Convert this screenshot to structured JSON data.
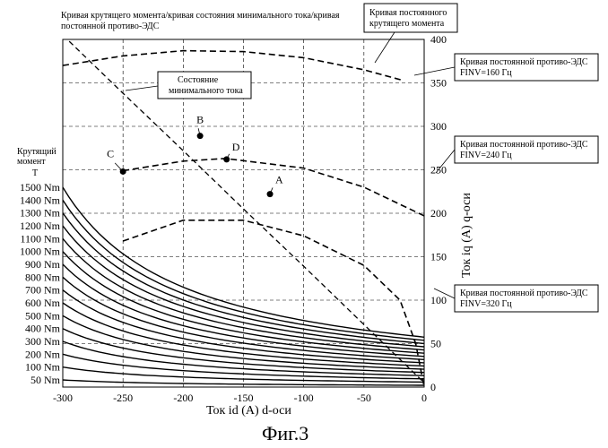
{
  "chart_data": {
    "type": "line",
    "top_label": [
      "Кривая крутящего момента/кривая состояния минимального тока/кривая",
      "постоянной противо-ЭДС"
    ],
    "xlabel": "Ток id (A) d-оси",
    "ylabel": "Ток iq (A) q-оси",
    "xlim": [
      -300,
      0
    ],
    "ylim": [
      0,
      400
    ],
    "x_ticks": [
      "-300",
      "-250",
      "-200",
      "-150",
      "-100",
      "-50",
      "0"
    ],
    "y_ticks": [
      "0",
      "50",
      "100",
      "150",
      "200",
      "250",
      "300",
      "350",
      "400"
    ],
    "torque_axis_title": [
      "Крутящий",
      "момент",
      "T"
    ],
    "torque_curves": [
      {
        "label": "50 Nm",
        "torque": 50
      },
      {
        "label": "100 Nm",
        "torque": 100
      },
      {
        "label": "200 Nm",
        "torque": 200
      },
      {
        "label": "300 Nm",
        "torque": 300
      },
      {
        "label": "400 Nm",
        "torque": 400
      },
      {
        "label": "500 Nm",
        "torque": 500
      },
      {
        "label": "600 Nm",
        "torque": 600
      },
      {
        "label": "700 Nm",
        "torque": 700
      },
      {
        "label": "800 Nm",
        "torque": 800
      },
      {
        "label": "900 Nm",
        "torque": 900
      },
      {
        "label": "1000 Nm",
        "torque": 1000
      },
      {
        "label": "1100 Nm",
        "torque": 1100
      },
      {
        "label": "1200 Nm",
        "torque": 1200
      },
      {
        "label": "1300 Nm",
        "torque": 1300
      },
      {
        "label": "1400 Nm",
        "torque": 1400
      },
      {
        "label": "1500 Nm",
        "torque": 1500
      }
    ],
    "back_emf_curves": [
      {
        "name": "FINV=160 Гц",
        "label_lines": [
          "Кривая постоянной противо-ЭДС",
          "FINV=160 Гц"
        ],
        "points": [
          [
            -300,
            370
          ],
          [
            -250,
            381
          ],
          [
            -200,
            387
          ],
          [
            -150,
            386
          ],
          [
            -100,
            379
          ],
          [
            -50,
            365
          ],
          [
            -18,
            353
          ]
        ]
      },
      {
        "name": "FINV=240 Гц",
        "label_lines": [
          "Кривая постоянной противо-ЭДС",
          "FINV=240 Гц"
        ],
        "points": [
          [
            -250,
            249
          ],
          [
            -200,
            260
          ],
          [
            -165,
            263
          ],
          [
            -100,
            252
          ],
          [
            -50,
            230
          ],
          [
            0,
            197
          ]
        ]
      },
      {
        "name": "FINV=320 Гц",
        "label_lines": [
          "Кривая постоянной противо-ЭДС",
          "FINV=320 Гц"
        ],
        "points": [
          [
            -250,
            168
          ],
          [
            -200,
            192
          ],
          [
            -150,
            192
          ],
          [
            -100,
            174
          ],
          [
            -50,
            140
          ],
          [
            -20,
            100
          ],
          [
            -7,
            50
          ],
          [
            0,
            0
          ]
        ]
      }
    ],
    "min_current_line": {
      "label_lines": [
        "Состояние",
        "минимального тока"
      ],
      "points": [
        [
          -300,
          405
        ],
        [
          -250,
          338
        ],
        [
          -200,
          272
        ],
        [
          -150,
          205
        ],
        [
          -100,
          139
        ],
        [
          -50,
          72
        ],
        [
          0,
          5
        ]
      ]
    },
    "constant_torque_note": [
      "Кривая постоянного",
      "крутящего момента"
    ],
    "points": [
      {
        "name": "A",
        "x": -128,
        "y": 222
      },
      {
        "name": "B",
        "x": -186,
        "y": 289
      },
      {
        "name": "C",
        "x": -250,
        "y": 248
      },
      {
        "name": "D",
        "x": -164,
        "y": 262
      }
    ],
    "grid": true,
    "caption": "Фиг.3"
  }
}
